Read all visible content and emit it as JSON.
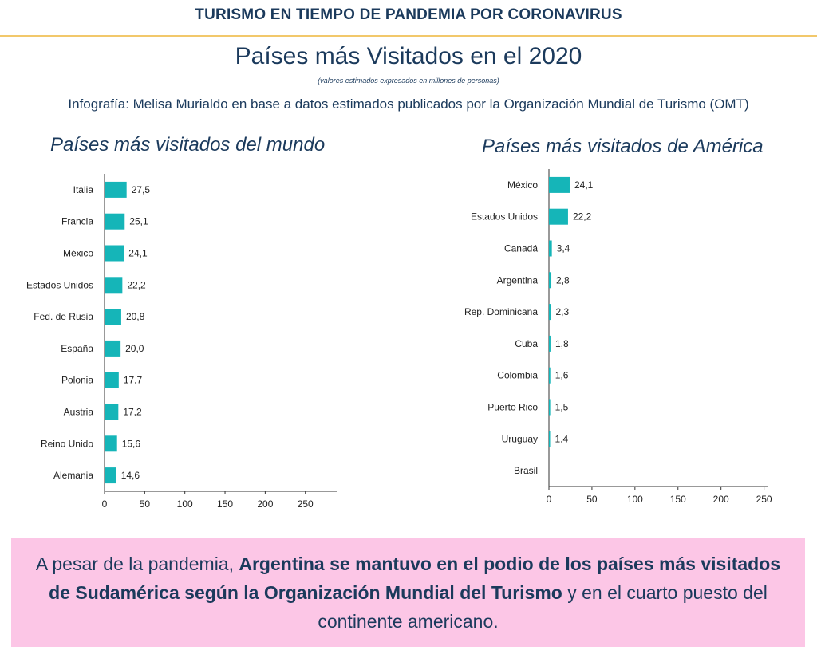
{
  "header": {
    "title": "TURISMO EN TIEMPO DE PANDEMIA POR CORONAVIRUS"
  },
  "main": {
    "title": "Países más Visitados en el 2020",
    "subtitle": "(valores estimados expresados en millones de personas)",
    "credit": "Infografía: Melisa Murialdo en base a datos estimados publicados por la Organización Mundial de Turismo (OMT)"
  },
  "colors": {
    "bar": "#15b5b8",
    "text": "#1b3a5c",
    "accent_rule": "#f2c86b",
    "callout_bg": "#fcc6e6"
  },
  "chart_data": [
    {
      "type": "bar",
      "orientation": "horizontal",
      "title": "Países más visitados del mundo",
      "categories": [
        "Italia",
        "Francia",
        "México",
        "Estados Unidos",
        "Fed. de Rusia",
        "España",
        "Polonia",
        "Austria",
        "Reino Unido",
        "Alemania"
      ],
      "values": [
        27.5,
        25.1,
        24.1,
        22.2,
        20.8,
        20.0,
        17.7,
        17.2,
        15.6,
        14.6
      ],
      "value_labels": [
        "27,5",
        "25,1",
        "24,1",
        "22,2",
        "20,8",
        "20,0",
        "17,7",
        "17,2",
        "15,6",
        "14,6"
      ],
      "xticks": [
        0,
        50,
        100,
        150,
        200,
        250
      ],
      "xlim": [
        0,
        290
      ]
    },
    {
      "type": "bar",
      "orientation": "horizontal",
      "title": "Países más visitados de América",
      "categories": [
        "México",
        "Estados Unidos",
        "Canadá",
        "Argentina",
        "Rep. Dominicana",
        "Cuba",
        "Colombia",
        "Puerto Rico",
        "Uruguay",
        "Brasil"
      ],
      "values": [
        24.1,
        22.2,
        3.4,
        2.8,
        2.3,
        1.8,
        1.6,
        1.5,
        1.4,
        0
      ],
      "value_labels": [
        "24,1",
        "22,2",
        "3,4",
        "2,8",
        "2,3",
        "1,8",
        "1,6",
        "1,5",
        "1,4",
        ""
      ],
      "xticks": [
        0,
        50,
        100,
        150,
        200,
        250
      ],
      "xlim": [
        0,
        255
      ]
    }
  ],
  "callout": {
    "part1": "A pesar de la pandemia, ",
    "part2": "Argentina se mantuvo en el podio de los países más visitados de Sudamérica según la Organización Mundial del Turismo",
    "part3": " y en el cuarto puesto del continente americano."
  }
}
